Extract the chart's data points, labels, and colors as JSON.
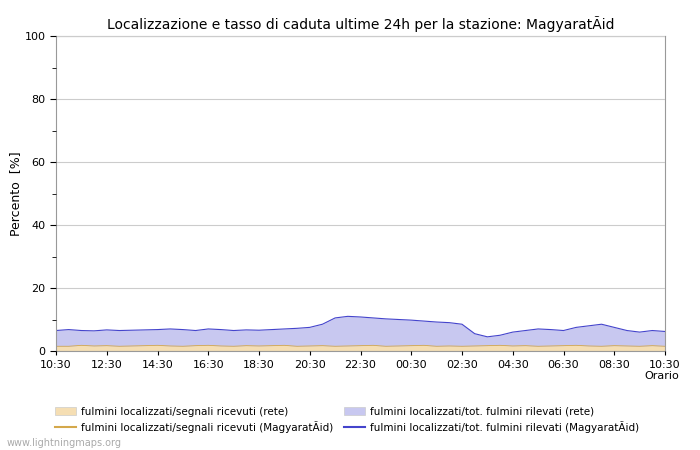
{
  "title": "Localizzazione e tasso di caduta ultime 24h per la stazione: MagyaratÃid",
  "ylabel": "Percento  [%]",
  "xlim": [
    0,
    48
  ],
  "ylim": [
    0,
    100
  ],
  "yticks": [
    0,
    20,
    40,
    60,
    80,
    100
  ],
  "yticks_minor": [
    10,
    30,
    50,
    70,
    90
  ],
  "xtick_labels": [
    "10:30",
    "12:30",
    "14:30",
    "16:30",
    "18:30",
    "20:30",
    "22:30",
    "00:30",
    "02:30",
    "04:30",
    "06:30",
    "08:30",
    "10:30"
  ],
  "fill_rete_color": "#f5deb3",
  "fill_rete_alpha": 1.0,
  "fill_magyarat_color": "#c8c8f0",
  "fill_magyarat_alpha": 1.0,
  "line_rete_color": "#d4a84b",
  "line_magyarat_color": "#4444cc",
  "legend1_label": "fulmini localizzati/segnali ricevuti (rete)",
  "legend2_label": "fulmini localizzati/segnali ricevuti (MagyaratÃid)",
  "legend3_label": "fulmini localizzati/tot. fulmini rilevati (rete)",
  "legend4_label": "fulmini localizzati/tot. fulmini rilevati (MagyaratÃid)",
  "watermark": "www.lightningmaps.org",
  "bg_color": "#ffffff",
  "grid_color": "#cccccc",
  "n_points": 49,
  "rete_lower": [
    1.5,
    1.5,
    1.8,
    1.6,
    1.7,
    1.5,
    1.6,
    1.7,
    1.8,
    1.6,
    1.5,
    1.7,
    1.8,
    1.6,
    1.5,
    1.7,
    1.6,
    1.7,
    1.8,
    1.5,
    1.6,
    1.7,
    1.5,
    1.6,
    1.7,
    1.8,
    1.5,
    1.6,
    1.7,
    1.8,
    1.5,
    1.6,
    1.5,
    1.6,
    1.7,
    1.8,
    1.6,
    1.7,
    1.5,
    1.6,
    1.7,
    1.8,
    1.6,
    1.5,
    1.7,
    1.6,
    1.5,
    1.7,
    1.5
  ],
  "magyarat_upper": [
    6.5,
    6.8,
    6.5,
    6.4,
    6.7,
    6.5,
    6.6,
    6.7,
    6.8,
    7.0,
    6.8,
    6.5,
    7.0,
    6.8,
    6.5,
    6.7,
    6.6,
    6.8,
    7.0,
    7.2,
    7.5,
    8.5,
    10.5,
    11.0,
    10.8,
    10.5,
    10.2,
    10.0,
    9.8,
    9.5,
    9.2,
    9.0,
    8.5,
    5.5,
    4.5,
    5.0,
    6.0,
    6.5,
    7.0,
    6.8,
    6.5,
    7.5,
    8.0,
    8.5,
    7.5,
    6.5,
    6.0,
    6.5,
    6.2
  ]
}
